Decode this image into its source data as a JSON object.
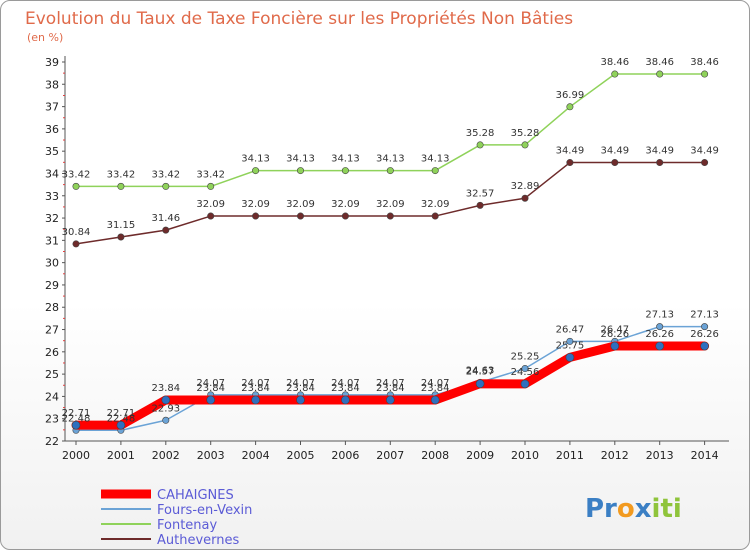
{
  "chart_data": {
    "type": "line",
    "title": "Evolution du Taux de Taxe Foncière sur les Propriétés Non Bâties",
    "subtitle": "(en %)",
    "xlabel": "",
    "ylabel": "",
    "categories": [
      "2000",
      "2001",
      "2002",
      "2003",
      "2004",
      "2005",
      "2006",
      "2007",
      "2008",
      "2009",
      "2010",
      "2011",
      "2012",
      "2013",
      "2014"
    ],
    "ylim": [
      22,
      39
    ],
    "yticks": [
      22,
      23,
      24,
      25,
      26,
      27,
      28,
      29,
      30,
      31,
      32,
      33,
      34,
      35,
      36,
      37,
      38,
      39
    ],
    "grid": false,
    "legend_position": "bottom-left",
    "series": [
      {
        "name": "CAHAIGNES",
        "color": "#ff0000",
        "values": [
          22.71,
          22.71,
          23.84,
          23.84,
          23.84,
          23.84,
          23.84,
          23.84,
          23.84,
          24.57,
          24.56,
          25.75,
          26.26,
          26.26,
          26.26
        ],
        "labels": [
          "22.71",
          "22.71",
          "23.84",
          "23.84",
          "23.84",
          "23.84",
          "23.84",
          "23.84",
          "23.84",
          "24.57",
          "24.56",
          "25.75",
          "26.26",
          "26.26",
          "26.26"
        ]
      },
      {
        "name": "Fours-en-Vexin",
        "color": "#6ba3d6",
        "values": [
          22.48,
          22.48,
          22.93,
          24.07,
          24.07,
          24.07,
          24.07,
          24.07,
          24.07,
          24.63,
          25.25,
          26.47,
          26.47,
          27.13,
          27.13
        ],
        "labels": [
          "22.48",
          "22.48",
          "22.93",
          "24.07",
          "24.07",
          "24.07",
          "24.07",
          "24.07",
          "24.07",
          "24.63",
          "25.25",
          "26.47",
          "26.47",
          "27.13",
          "27.13"
        ]
      },
      {
        "name": "Fontenay",
        "color": "#8fd25a",
        "values": [
          33.42,
          33.42,
          33.42,
          33.42,
          34.13,
          34.13,
          34.13,
          34.13,
          34.13,
          35.28,
          35.28,
          36.99,
          38.46,
          38.46,
          38.46
        ],
        "labels": [
          "33.42",
          "33.42",
          "33.42",
          "33.42",
          "34.13",
          "34.13",
          "34.13",
          "34.13",
          "34.13",
          "35.28",
          "35.28",
          "36.99",
          "38.46",
          "38.46",
          "38.46"
        ]
      },
      {
        "name": "Authevernes",
        "color": "#6e2b2b",
        "values": [
          30.84,
          31.15,
          31.46,
          32.09,
          32.09,
          32.09,
          32.09,
          32.09,
          32.09,
          32.57,
          32.89,
          34.49,
          34.49,
          34.49,
          34.49
        ],
        "labels": [
          "30.84",
          "31.15",
          "31.46",
          "32.09",
          "32.09",
          "32.09",
          "32.09",
          "32.09",
          "32.09",
          "32.57",
          "32.89",
          "34.49",
          "34.49",
          "34.49",
          "34.49"
        ]
      }
    ]
  },
  "brand": {
    "parts": [
      "Pr",
      "o",
      "x",
      "iti"
    ]
  }
}
